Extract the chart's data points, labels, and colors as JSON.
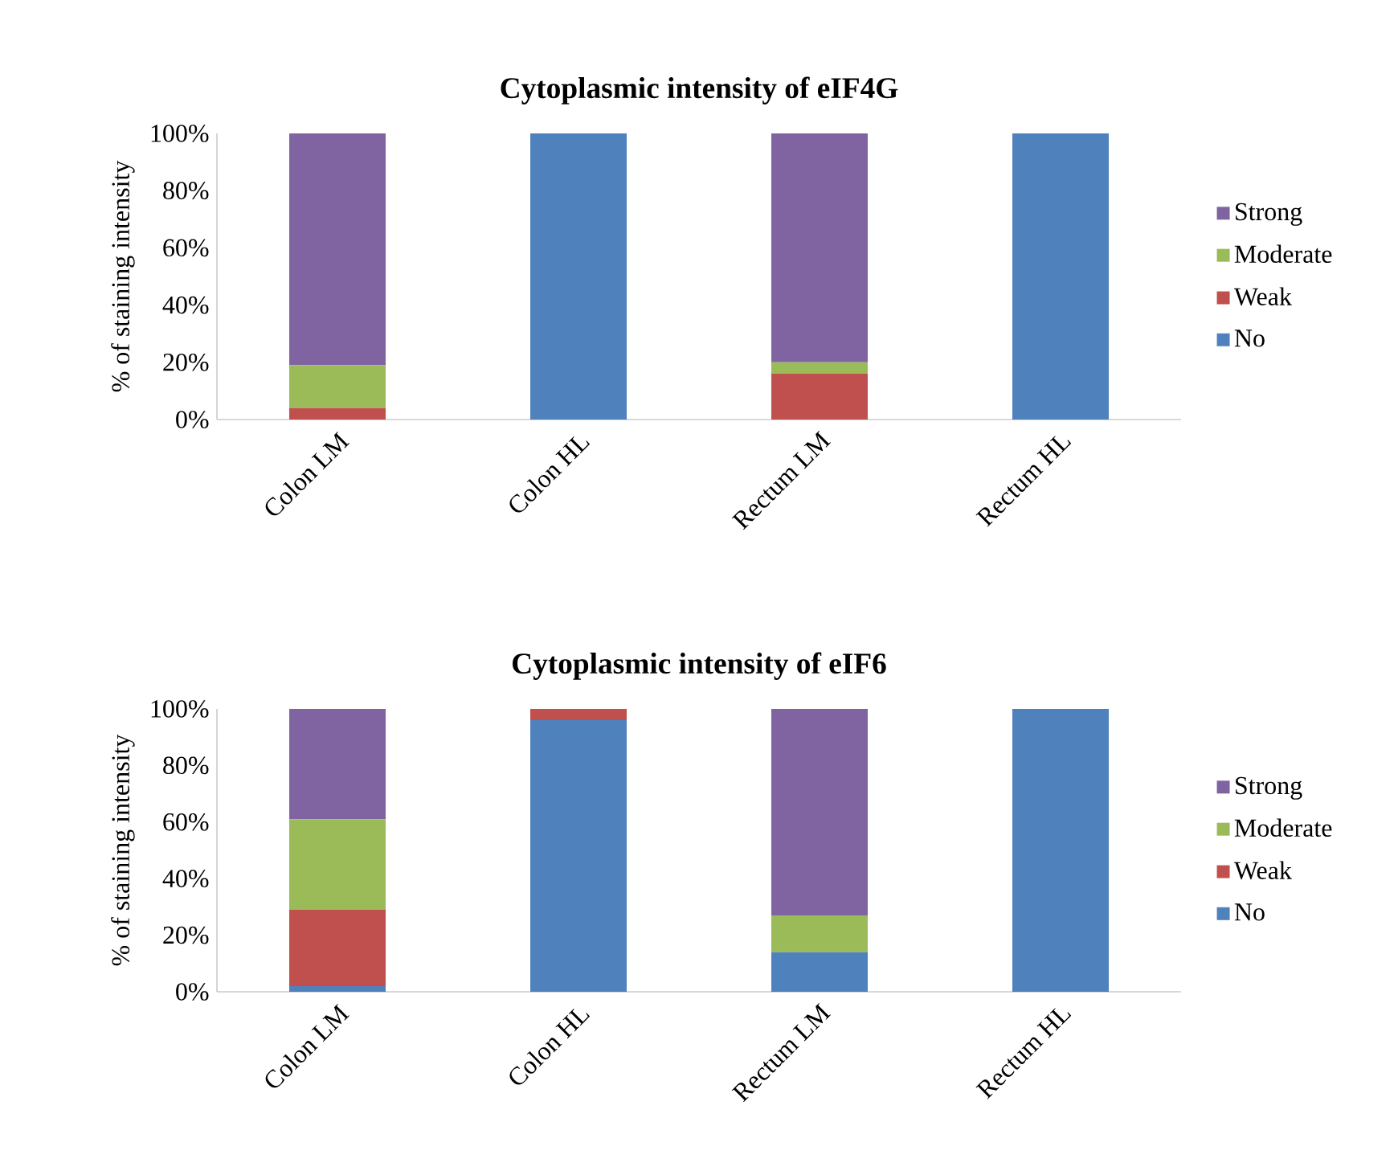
{
  "chart_data": [
    {
      "type": "bar",
      "stacked": true,
      "title": "Cytoplasmic intensity of eIF4G",
      "ylabel": "% of staining intensity",
      "categories": [
        "Colon LM",
        "Colon HL",
        "Rectum LM",
        "Rectum HL"
      ],
      "series": [
        {
          "name": "No",
          "color": "#4f81bd",
          "values": [
            0,
            100,
            0,
            100
          ]
        },
        {
          "name": "Weak",
          "color": "#c0504d",
          "values": [
            4,
            0,
            16,
            0
          ]
        },
        {
          "name": "Moderate",
          "color": "#9bbb59",
          "values": [
            15,
            0,
            4,
            0
          ]
        },
        {
          "name": "Strong",
          "color": "#8064a2",
          "values": [
            81,
            0,
            80,
            0
          ]
        }
      ],
      "ylim": [
        0,
        100
      ],
      "yticks": [
        {
          "value": 0,
          "label": "0%"
        },
        {
          "value": 20,
          "label": "20%"
        },
        {
          "value": 40,
          "label": "40%"
        },
        {
          "value": 60,
          "label": "60%"
        },
        {
          "value": 80,
          "label": "80%"
        },
        {
          "value": 100,
          "label": "100%"
        }
      ],
      "legend": "right"
    },
    {
      "type": "bar",
      "stacked": true,
      "title": "Cytoplasmic intensity of eIF6",
      "ylabel": "% of staining intensity",
      "categories": [
        "Colon LM",
        "Colon HL",
        "Rectum LM",
        "Rectum HL"
      ],
      "series": [
        {
          "name": "No",
          "color": "#4f81bd",
          "values": [
            2,
            96,
            14,
            100
          ]
        },
        {
          "name": "Weak",
          "color": "#c0504d",
          "values": [
            27,
            4,
            0,
            0
          ]
        },
        {
          "name": "Moderate",
          "color": "#9bbb59",
          "values": [
            32,
            0,
            13,
            0
          ]
        },
        {
          "name": "Strong",
          "color": "#8064a2",
          "values": [
            39,
            0,
            73,
            0
          ]
        }
      ],
      "ylim": [
        0,
        100
      ],
      "yticks": [
        {
          "value": 0,
          "label": "0%"
        },
        {
          "value": 20,
          "label": "20%"
        },
        {
          "value": 40,
          "label": "40%"
        },
        {
          "value": 60,
          "label": "60%"
        },
        {
          "value": 80,
          "label": "80%"
        },
        {
          "value": 100,
          "label": "100%"
        }
      ],
      "legend": "right"
    }
  ]
}
